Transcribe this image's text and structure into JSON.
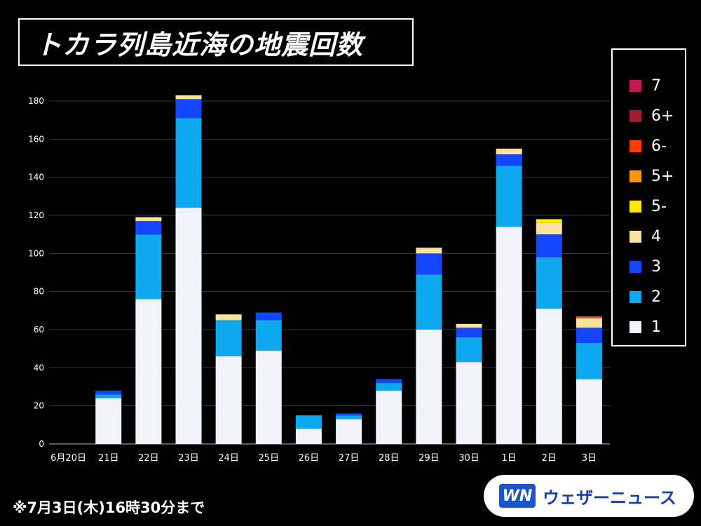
{
  "title": "トカラ列島近海の地震回数",
  "footnote": "※7月3日(木)16時30分まで",
  "brand": {
    "logo": "WN",
    "name": "ウェザーニュース"
  },
  "colors": {
    "7": "#c2185b",
    "6+": "#a01c2c",
    "6-": "#ff3d00",
    "5+": "#ff9800",
    "5-": "#ffeb00",
    "4": "#fbe39c",
    "3": "#1546ff",
    "2": "#0ea8ee",
    "1": "#f2f2fb"
  },
  "legend": [
    "7",
    "6+",
    "6-",
    "5+",
    "5-",
    "4",
    "3",
    "2",
    "1"
  ],
  "chart_data": {
    "type": "bar",
    "stacked": true,
    "categories": [
      "6月20日",
      "21日",
      "22日",
      "23日",
      "24日",
      "25日",
      "26日",
      "27日",
      "28日",
      "29日",
      "30日",
      "1日",
      "2日",
      "3日"
    ],
    "series": [
      {
        "name": "1",
        "values": [
          0,
          24,
          76,
          124,
          46,
          49,
          8,
          13,
          28,
          60,
          43,
          114,
          71,
          34
        ]
      },
      {
        "name": "2",
        "values": [
          0,
          2,
          34,
          47,
          19,
          16,
          7,
          2,
          4,
          29,
          13,
          32,
          27,
          19
        ]
      },
      {
        "name": "3",
        "values": [
          0,
          2,
          7,
          10,
          0,
          4,
          0,
          1,
          2,
          11,
          5,
          6,
          12,
          8
        ]
      },
      {
        "name": "4",
        "values": [
          0,
          0,
          2,
          2,
          3,
          0,
          0,
          0,
          0,
          3,
          2,
          3,
          6,
          5
        ]
      },
      {
        "name": "5-",
        "values": [
          0,
          0,
          0,
          0,
          0,
          0,
          0,
          0,
          0,
          0,
          0,
          0,
          2,
          0
        ]
      },
      {
        "name": "5+",
        "values": [
          0,
          0,
          0,
          0,
          0,
          0,
          0,
          0,
          0,
          0,
          0,
          0,
          0,
          0
        ]
      },
      {
        "name": "6-",
        "values": [
          0,
          0,
          0,
          0,
          0,
          0,
          0,
          0,
          0,
          0,
          0,
          0,
          0,
          1
        ]
      },
      {
        "name": "6+",
        "values": [
          0,
          0,
          0,
          0,
          0,
          0,
          0,
          0,
          0,
          0,
          0,
          0,
          0,
          0
        ]
      },
      {
        "name": "7",
        "values": [
          0,
          0,
          0,
          0,
          0,
          0,
          0,
          0,
          0,
          0,
          0,
          0,
          0,
          0
        ]
      }
    ],
    "ylim": [
      0,
      180
    ],
    "yticks": [
      0,
      20,
      40,
      60,
      80,
      100,
      120,
      140,
      160,
      180
    ],
    "grid": true,
    "legend_position": "right"
  }
}
